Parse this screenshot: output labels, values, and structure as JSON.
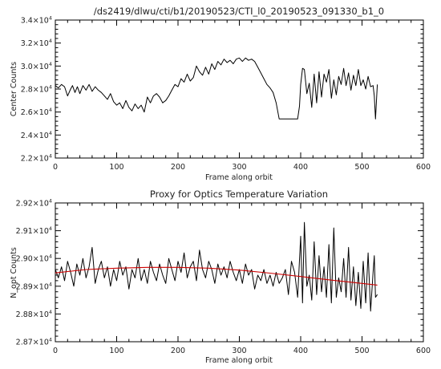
{
  "chart_data": [
    {
      "type": "line",
      "title": "/ds2419/dlwu/cti/b1/20190523/CTI_l0_20190523_091330_b1_0",
      "xlabel": "Frame along orbit",
      "ylabel": "Center Counts",
      "xlim": [
        0,
        600
      ],
      "ylim": [
        22000,
        34000
      ],
      "xticks": [
        0,
        100,
        200,
        300,
        400,
        500,
        600
      ],
      "yticks": [
        {
          "mant": "2.2",
          "exp": "4",
          "value": 22000
        },
        {
          "mant": "2.4",
          "exp": "4",
          "value": 24000
        },
        {
          "mant": "2.6",
          "exp": "4",
          "value": 26000
        },
        {
          "mant": "2.8",
          "exp": "4",
          "value": 28000
        },
        {
          "mant": "3.0",
          "exp": "4",
          "value": 30000
        },
        {
          "mant": "3.2",
          "exp": "4",
          "value": 32000
        },
        {
          "mant": "3.4",
          "exp": "4",
          "value": 34000
        }
      ],
      "series": [
        {
          "color": "#000000",
          "x": [
            0,
            5,
            10,
            15,
            20,
            25,
            28,
            32,
            36,
            40,
            45,
            50,
            55,
            60,
            65,
            70,
            75,
            80,
            85,
            90,
            95,
            100,
            105,
            110,
            115,
            120,
            125,
            130,
            135,
            140,
            145,
            150,
            155,
            160,
            165,
            170,
            175,
            180,
            185,
            190,
            195,
            200,
            205,
            210,
            215,
            220,
            225,
            230,
            235,
            240,
            245,
            250,
            255,
            260,
            265,
            270,
            275,
            280,
            285,
            290,
            295,
            300,
            305,
            310,
            315,
            320,
            325,
            330,
            335,
            340,
            345,
            350,
            355,
            360,
            365,
            370,
            375,
            380,
            385,
            390,
            395,
            398,
            400,
            403,
            406,
            410,
            414,
            418,
            422,
            426,
            430,
            434,
            438,
            442,
            446,
            450,
            454,
            458,
            462,
            466,
            470,
            474,
            478,
            482,
            486,
            490,
            494,
            498,
            502,
            506,
            510,
            514,
            518,
            520,
            522,
            525
          ],
          "y": [
            28300,
            28100,
            28400,
            28200,
            27400,
            28000,
            28300,
            27700,
            28200,
            27600,
            28300,
            27900,
            28400,
            27800,
            28200,
            27900,
            27700,
            27400,
            27100,
            27600,
            26900,
            26600,
            26800,
            26300,
            27000,
            26400,
            26100,
            26700,
            26300,
            26600,
            26000,
            27300,
            26800,
            27400,
            27600,
            27300,
            26800,
            27000,
            27400,
            27900,
            28400,
            28200,
            28900,
            28600,
            29300,
            28700,
            29000,
            30000,
            29500,
            29200,
            29900,
            29300,
            30200,
            29700,
            30400,
            30100,
            30600,
            30300,
            30500,
            30200,
            30600,
            30700,
            30400,
            30700,
            30500,
            30600,
            30400,
            29900,
            29400,
            28900,
            28400,
            28100,
            27700,
            26800,
            25400,
            25400,
            25400,
            25400,
            25400,
            25400,
            25400,
            26500,
            28400,
            29800,
            29700,
            27600,
            28500,
            26400,
            29300,
            26800,
            29500,
            27300,
            29300,
            28600,
            29700,
            27200,
            28800,
            27500,
            29100,
            28400,
            29800,
            28300,
            29400,
            27900,
            29200,
            28300,
            29700,
            28300,
            28800,
            28000,
            29100,
            28200,
            28300,
            27400,
            25400,
            28400
          ]
        }
      ]
    },
    {
      "type": "line",
      "title": "Proxy for Optics Temperature Variation",
      "xlabel": "Frame along orbit",
      "ylabel": "N_opt Counts",
      "xlim": [
        0,
        600
      ],
      "ylim": [
        28700,
        29200
      ],
      "xticks": [
        0,
        100,
        200,
        300,
        400,
        500,
        600
      ],
      "yticks": [
        {
          "mant": "2.87",
          "exp": "4",
          "value": 28700
        },
        {
          "mant": "2.88",
          "exp": "4",
          "value": 28800
        },
        {
          "mant": "2.89",
          "exp": "4",
          "value": 28900
        },
        {
          "mant": "2.90",
          "exp": "4",
          "value": 29000
        },
        {
          "mant": "2.91",
          "exp": "4",
          "value": 29100
        },
        {
          "mant": "2.92",
          "exp": "4",
          "value": 29200
        }
      ],
      "series": [
        {
          "color": "#000000",
          "x": [
            0,
            5,
            10,
            15,
            20,
            25,
            30,
            35,
            40,
            45,
            50,
            55,
            60,
            65,
            70,
            75,
            80,
            85,
            90,
            95,
            100,
            105,
            110,
            115,
            120,
            125,
            130,
            135,
            140,
            145,
            150,
            155,
            160,
            165,
            170,
            175,
            180,
            185,
            190,
            195,
            200,
            205,
            210,
            215,
            220,
            225,
            230,
            235,
            240,
            245,
            250,
            255,
            260,
            265,
            270,
            275,
            280,
            285,
            290,
            295,
            300,
            305,
            310,
            315,
            320,
            325,
            330,
            335,
            340,
            345,
            350,
            355,
            360,
            365,
            370,
            375,
            380,
            385,
            390,
            395,
            400,
            403,
            406,
            410,
            414,
            418,
            422,
            426,
            430,
            434,
            438,
            442,
            446,
            450,
            454,
            458,
            462,
            466,
            470,
            474,
            478,
            482,
            486,
            490,
            494,
            498,
            502,
            506,
            510,
            514,
            518,
            520,
            522,
            525
          ],
          "y": [
            28960,
            28930,
            28970,
            28920,
            28990,
            28950,
            28900,
            28980,
            28940,
            29000,
            28930,
            28970,
            29040,
            28910,
            28960,
            28990,
            28930,
            28970,
            28900,
            28960,
            28920,
            28990,
            28940,
            28970,
            28890,
            28960,
            28930,
            29000,
            28920,
            28960,
            28910,
            28990,
            28950,
            28920,
            28980,
            28940,
            28910,
            29000,
            28960,
            28920,
            28990,
            28950,
            29020,
            28930,
            28970,
            28990,
            28920,
            29030,
            28960,
            28930,
            28990,
            28960,
            28910,
            28980,
            28940,
            28970,
            28930,
            28990,
            28950,
            28920,
            28960,
            28910,
            28980,
            28940,
            28960,
            28890,
            28940,
            28920,
            28960,
            28910,
            28940,
            28900,
            28950,
            28910,
            28930,
            28960,
            28870,
            28990,
            28950,
            28860,
            29080,
            28840,
            29130,
            28900,
            28940,
            28850,
            29060,
            28870,
            29010,
            28880,
            28970,
            28860,
            29050,
            28840,
            29110,
            28860,
            28930,
            28880,
            29000,
            28860,
            29040,
            28850,
            28970,
            28830,
            28950,
            28820,
            28990,
            28840,
            29020,
            28810,
            28950,
            29010,
            28860,
            28870
          ]
        },
        {
          "color": "#cc0000",
          "x": [
            0,
            50,
            100,
            150,
            200,
            250,
            300,
            350,
            400,
            450,
            500,
            525
          ],
          "y": [
            28948,
            28960,
            28965,
            28968,
            28968,
            28965,
            28958,
            28947,
            28935,
            28922,
            28910,
            28904
          ]
        }
      ]
    }
  ]
}
